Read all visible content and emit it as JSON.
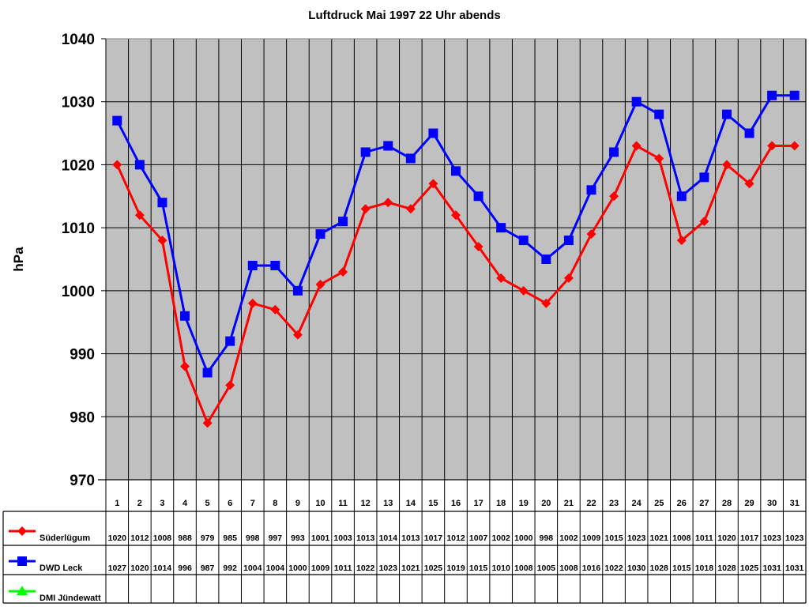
{
  "chart_data": {
    "type": "line",
    "title": "Luftdruck Mai 1997 22 Uhr abends",
    "xlabel": "",
    "ylabel": "hPa",
    "ylim": [
      970,
      1040
    ],
    "yticks": [
      970,
      980,
      990,
      1000,
      1010,
      1020,
      1030,
      1040
    ],
    "grid": true,
    "legend_position": "data-table-left",
    "categories": [
      "1",
      "2",
      "3",
      "4",
      "5",
      "6",
      "7",
      "8",
      "9",
      "10",
      "11",
      "12",
      "13",
      "14",
      "15",
      "16",
      "17",
      "18",
      "19",
      "20",
      "21",
      "22",
      "23",
      "24",
      "25",
      "26",
      "27",
      "28",
      "29",
      "30",
      "31"
    ],
    "series": [
      {
        "name": "Süderlügum",
        "color": "#ff0000",
        "marker": "diamond",
        "values": [
          1020,
          1012,
          1008,
          988,
          979,
          985,
          998,
          997,
          993,
          1001,
          1003,
          1013,
          1014,
          1013,
          1017,
          1012,
          1007,
          1002,
          1000,
          998,
          1002,
          1009,
          1015,
          1023,
          1021,
          1008,
          1011,
          1020,
          1017,
          1023,
          1023
        ]
      },
      {
        "name": "DWD Leck",
        "color": "#0000ff",
        "marker": "square",
        "values": [
          1027,
          1020,
          1014,
          996,
          987,
          992,
          1004,
          1004,
          1000,
          1009,
          1011,
          1022,
          1023,
          1021,
          1025,
          1019,
          1015,
          1010,
          1008,
          1005,
          1008,
          1016,
          1022,
          1030,
          1028,
          1015,
          1018,
          1028,
          1025,
          1031,
          1031
        ]
      },
      {
        "name": "DMI Jündewatt",
        "color": "#00ff00",
        "marker": "triangle",
        "values": []
      }
    ]
  },
  "colors": {
    "plot_bg": "#c0c0c0",
    "grid": "#000000"
  }
}
